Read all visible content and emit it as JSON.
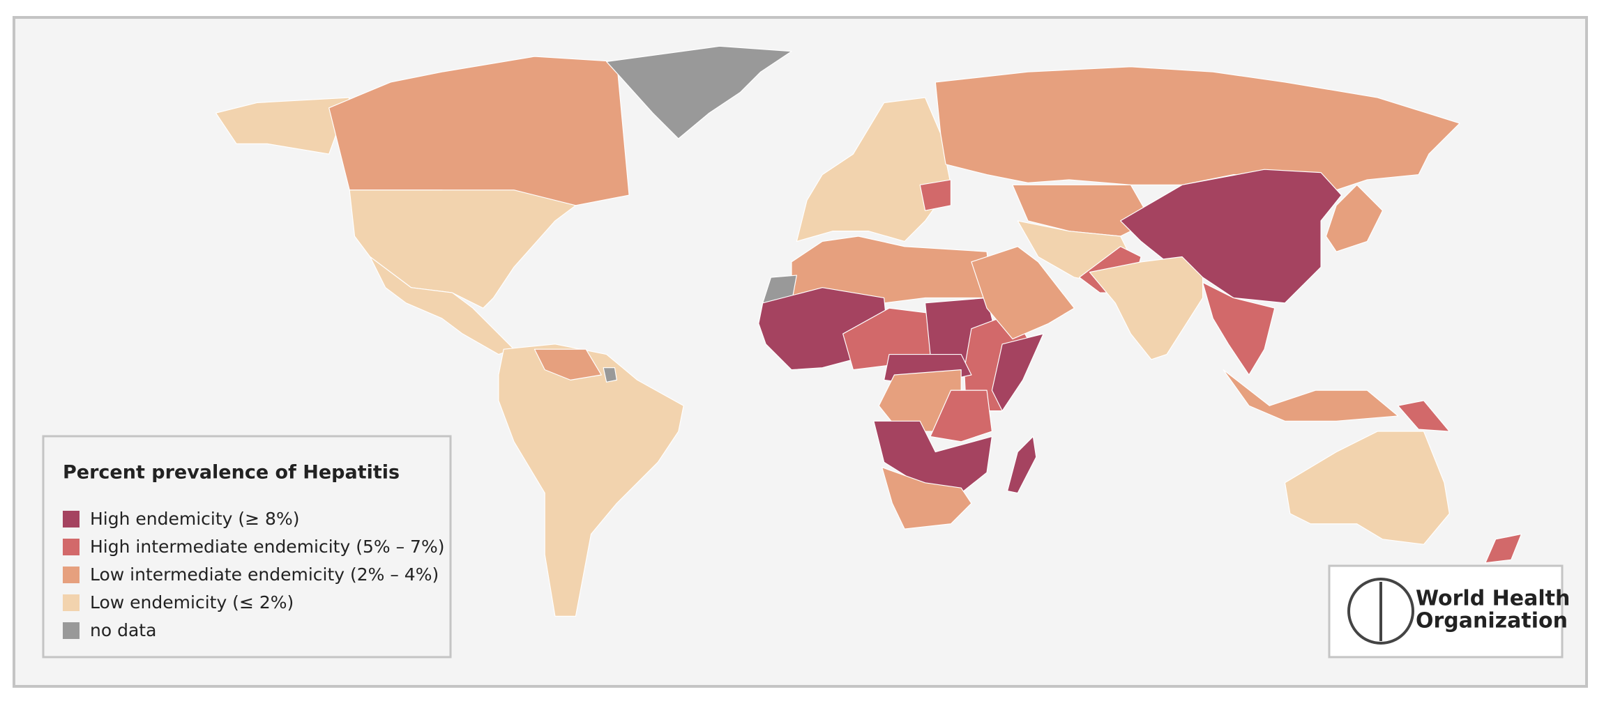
{
  "legend": {
    "title": "Percent prevalence of Hepatitis",
    "items": [
      {
        "label": "High endemicity (≥ 8%)",
        "color": "#a54360"
      },
      {
        "label": "High intermediate endemicity (5% – 7%)",
        "color": "#d2696a"
      },
      {
        "label": "Low intermediate endemicity (2% – 4%)",
        "color": "#e6a07e"
      },
      {
        "label": "Low endemicity (≤ 2%)",
        "color": "#f2d3ae"
      },
      {
        "label": "no data",
        "color": "#999999"
      }
    ]
  },
  "logo": {
    "lines": [
      "World Health",
      "Organization"
    ]
  }
}
